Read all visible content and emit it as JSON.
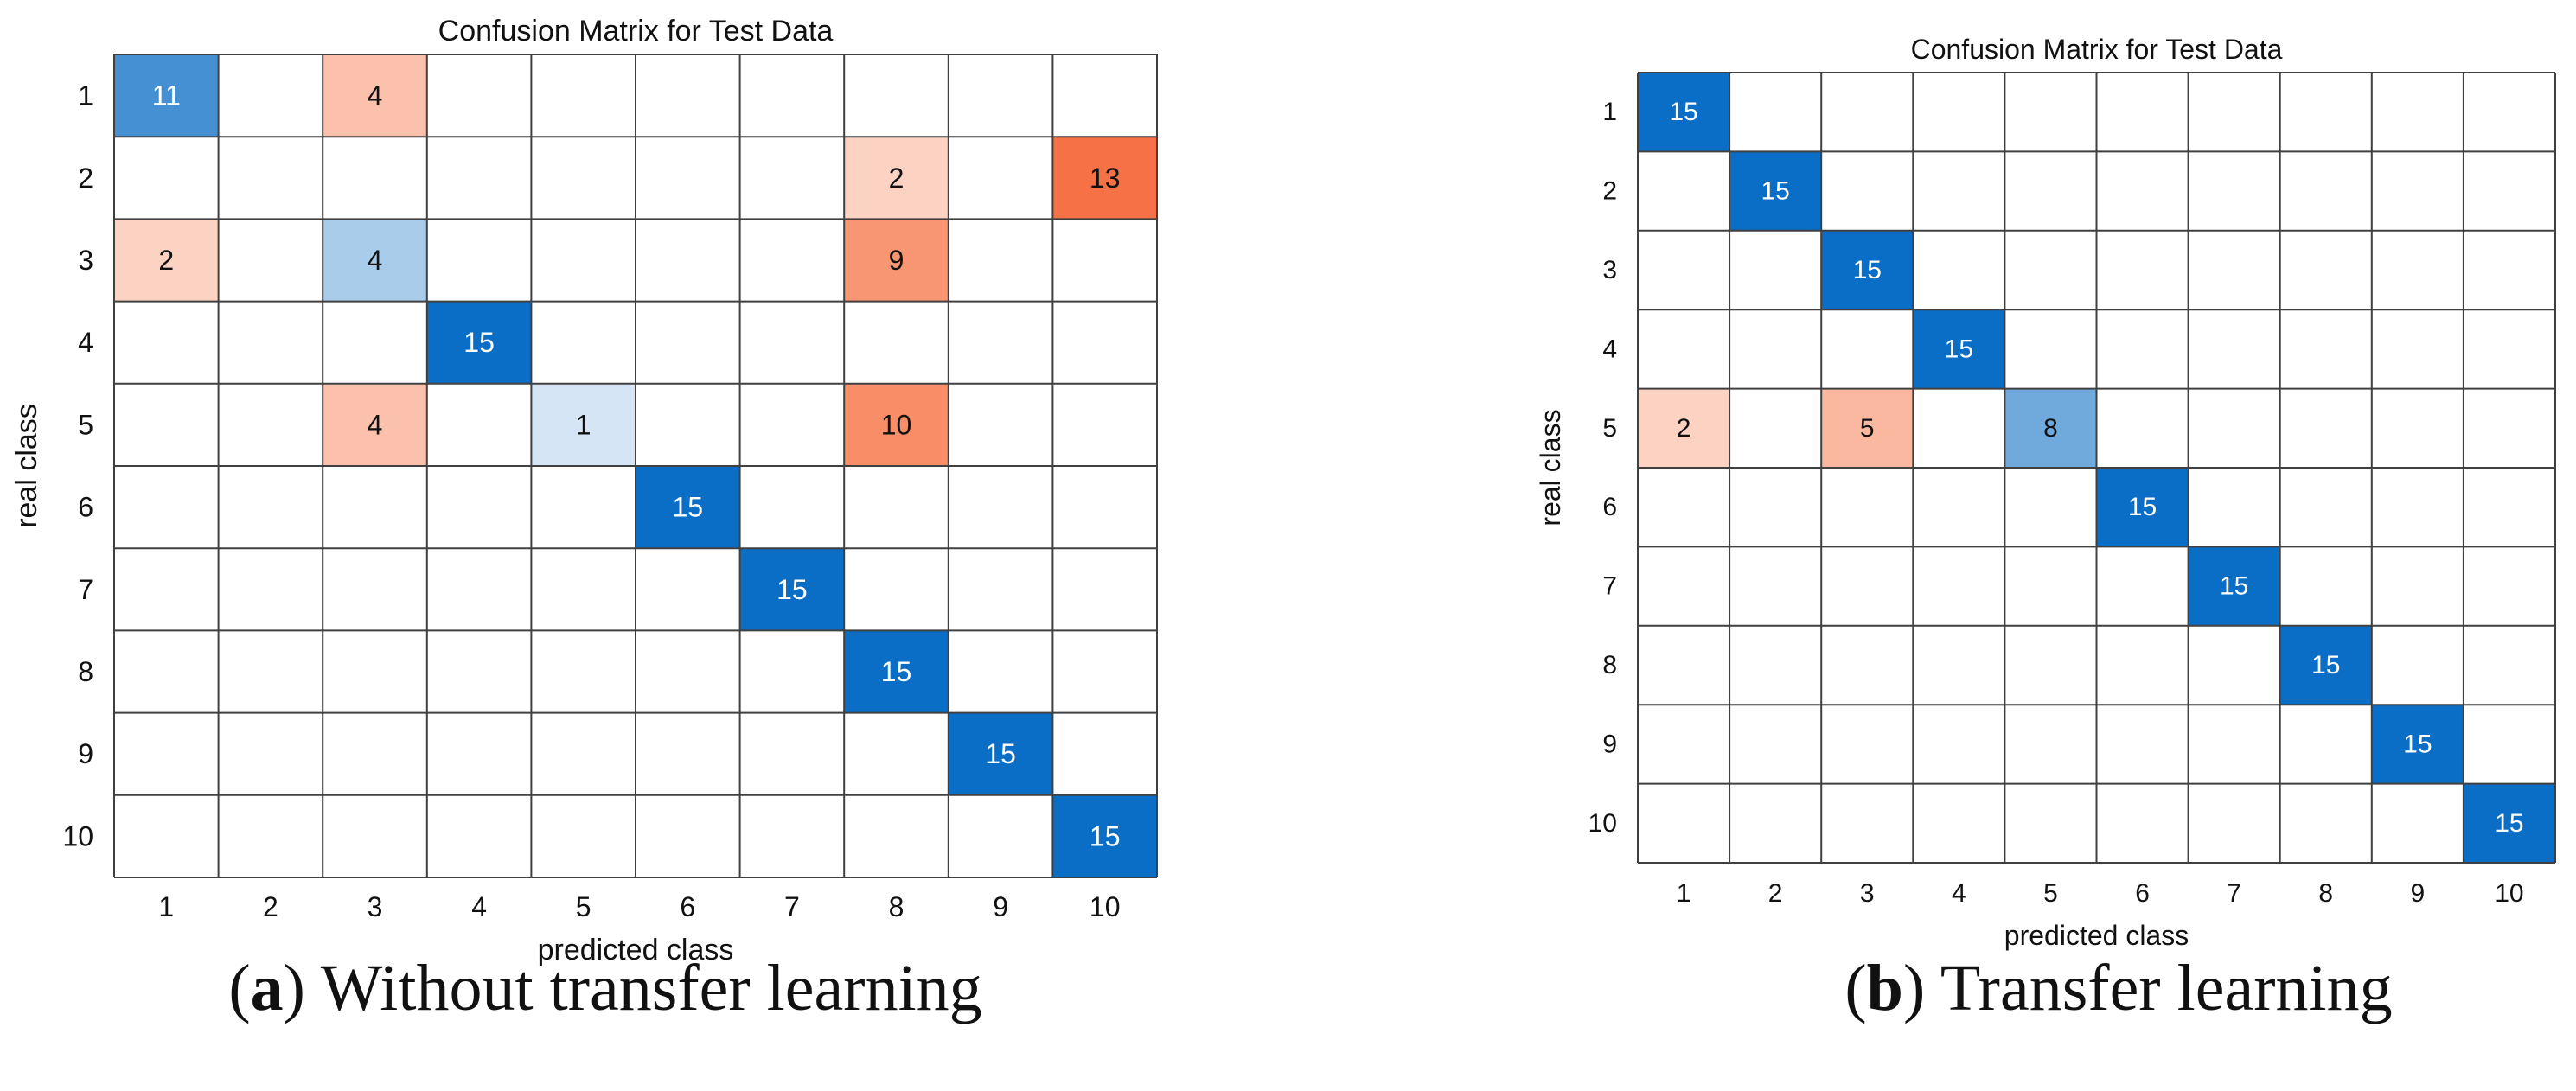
{
  "chart_data": [
    {
      "type": "heatmap",
      "title": "Confusion Matrix for Test Data",
      "xlabel": "predicted class",
      "ylabel": "real class",
      "classes": [
        "1",
        "2",
        "3",
        "4",
        "5",
        "6",
        "7",
        "8",
        "9",
        "10"
      ],
      "matrix": [
        [
          11,
          0,
          4,
          0,
          0,
          0,
          0,
          0,
          0,
          0
        ],
        [
          0,
          0,
          0,
          0,
          0,
          0,
          0,
          2,
          0,
          13
        ],
        [
          2,
          0,
          4,
          0,
          0,
          0,
          0,
          9,
          0,
          0
        ],
        [
          0,
          0,
          0,
          15,
          0,
          0,
          0,
          0,
          0,
          0
        ],
        [
          0,
          0,
          4,
          0,
          1,
          0,
          0,
          10,
          0,
          0
        ],
        [
          0,
          0,
          0,
          0,
          0,
          15,
          0,
          0,
          0,
          0
        ],
        [
          0,
          0,
          0,
          0,
          0,
          0,
          15,
          0,
          0,
          0
        ],
        [
          0,
          0,
          0,
          0,
          0,
          0,
          0,
          15,
          0,
          0
        ],
        [
          0,
          0,
          0,
          0,
          0,
          0,
          0,
          0,
          15,
          0
        ],
        [
          0,
          0,
          0,
          0,
          0,
          0,
          0,
          0,
          0,
          15
        ]
      ],
      "caption_label": "a",
      "caption_text": "Without transfer learning"
    },
    {
      "type": "heatmap",
      "title": "Confusion Matrix for Test Data",
      "xlabel": "predicted class",
      "ylabel": "real class",
      "classes": [
        "1",
        "2",
        "3",
        "4",
        "5",
        "6",
        "7",
        "8",
        "9",
        "10"
      ],
      "matrix": [
        [
          15,
          0,
          0,
          0,
          0,
          0,
          0,
          0,
          0,
          0
        ],
        [
          0,
          15,
          0,
          0,
          0,
          0,
          0,
          0,
          0,
          0
        ],
        [
          0,
          0,
          15,
          0,
          0,
          0,
          0,
          0,
          0,
          0
        ],
        [
          0,
          0,
          0,
          15,
          0,
          0,
          0,
          0,
          0,
          0
        ],
        [
          2,
          0,
          5,
          0,
          8,
          0,
          0,
          0,
          0,
          0
        ],
        [
          0,
          0,
          0,
          0,
          0,
          15,
          0,
          0,
          0,
          0
        ],
        [
          0,
          0,
          0,
          0,
          0,
          0,
          15,
          0,
          0,
          0
        ],
        [
          0,
          0,
          0,
          0,
          0,
          0,
          0,
          15,
          0,
          0
        ],
        [
          0,
          0,
          0,
          0,
          0,
          0,
          0,
          0,
          15,
          0
        ],
        [
          0,
          0,
          0,
          0,
          0,
          0,
          0,
          0,
          0,
          15
        ]
      ],
      "caption_label": "b",
      "caption_text": "Transfer learning"
    }
  ],
  "colors": {
    "diag_full": "#0b6ec6",
    "diag_low": "#e3eef8",
    "off_full": "#f5612f",
    "off_low": "#fde4da",
    "grid": "#404040",
    "text_dark": "#111111",
    "text_light": "#ffffff"
  }
}
